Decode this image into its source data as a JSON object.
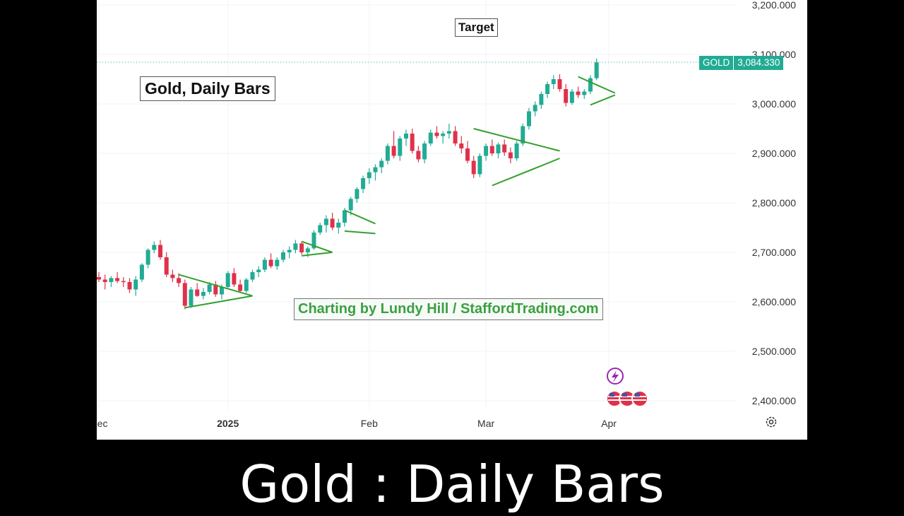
{
  "caption": "Gold : Daily Bars",
  "colors": {
    "up": "#22ab94",
    "down": "#e0314b",
    "pattern": "#32a02c",
    "grid": "#f0f3fa",
    "axis_text": "#333333"
  },
  "price_tag": {
    "symbol": "GOLD",
    "value": "3,084.330"
  },
  "icons": [
    "lightning-icon",
    "us-flag-icon",
    "settings-icon"
  ],
  "chart_data": {
    "type": "candlestick",
    "title": "Gold, Daily Bars",
    "annotations": [
      "Target",
      "Charting by Lundy Hill / StaffordTrading.com"
    ],
    "y_ticks": [
      "3,200.000",
      "3,100.000",
      "3,000.000",
      "2,900.000",
      "2,800.000",
      "2,700.000",
      "2,600.000",
      "2,500.000",
      "2,400.000"
    ],
    "y_tick_values": [
      3200,
      3100,
      3000,
      2900,
      2800,
      2700,
      2600,
      2500,
      2400
    ],
    "x_ticks": [
      {
        "label": "Dec",
        "bar": 0,
        "bold": false
      },
      {
        "label": "2025",
        "bar": 21,
        "bold": true
      },
      {
        "label": "Feb",
        "bar": 44,
        "bold": false
      },
      {
        "label": "Mar",
        "bar": 63,
        "bold": false
      },
      {
        "label": "Apr",
        "bar": 83,
        "bold": false
      }
    ],
    "ylim": [
      2370,
      3210
    ],
    "last_price": 3084.33,
    "ohlc": [
      [
        2650,
        2660,
        2640,
        2645
      ],
      [
        2645,
        2655,
        2625,
        2640
      ],
      [
        2640,
        2652,
        2630,
        2648
      ],
      [
        2648,
        2660,
        2638,
        2642
      ],
      [
        2642,
        2650,
        2630,
        2640
      ],
      [
        2640,
        2648,
        2618,
        2625
      ],
      [
        2625,
        2652,
        2612,
        2645
      ],
      [
        2645,
        2678,
        2640,
        2675
      ],
      [
        2675,
        2708,
        2668,
        2705
      ],
      [
        2705,
        2722,
        2698,
        2715
      ],
      [
        2715,
        2725,
        2685,
        2690
      ],
      [
        2690,
        2700,
        2650,
        2655
      ],
      [
        2655,
        2665,
        2640,
        2648
      ],
      [
        2648,
        2658,
        2630,
        2638
      ],
      [
        2638,
        2645,
        2585,
        2592
      ],
      [
        2592,
        2630,
        2588,
        2625
      ],
      [
        2625,
        2638,
        2610,
        2612
      ],
      [
        2612,
        2628,
        2605,
        2620
      ],
      [
        2620,
        2640,
        2615,
        2635
      ],
      [
        2635,
        2642,
        2610,
        2615
      ],
      [
        2615,
        2635,
        2605,
        2630
      ],
      [
        2630,
        2662,
        2628,
        2658
      ],
      [
        2658,
        2668,
        2630,
        2635
      ],
      [
        2635,
        2645,
        2618,
        2622
      ],
      [
        2622,
        2648,
        2618,
        2645
      ],
      [
        2645,
        2665,
        2640,
        2660
      ],
      [
        2660,
        2672,
        2650,
        2665
      ],
      [
        2665,
        2690,
        2660,
        2685
      ],
      [
        2685,
        2698,
        2668,
        2672
      ],
      [
        2672,
        2690,
        2665,
        2685
      ],
      [
        2685,
        2705,
        2680,
        2700
      ],
      [
        2700,
        2712,
        2688,
        2705
      ],
      [
        2705,
        2725,
        2698,
        2718
      ],
      [
        2718,
        2722,
        2695,
        2700
      ],
      [
        2700,
        2712,
        2690,
        2708
      ],
      [
        2708,
        2745,
        2705,
        2740
      ],
      [
        2740,
        2760,
        2735,
        2755
      ],
      [
        2755,
        2775,
        2740,
        2768
      ],
      [
        2768,
        2780,
        2745,
        2750
      ],
      [
        2750,
        2768,
        2738,
        2760
      ],
      [
        2760,
        2790,
        2752,
        2785
      ],
      [
        2785,
        2812,
        2775,
        2808
      ],
      [
        2808,
        2832,
        2800,
        2828
      ],
      [
        2828,
        2855,
        2820,
        2850
      ],
      [
        2850,
        2870,
        2838,
        2862
      ],
      [
        2862,
        2878,
        2845,
        2872
      ],
      [
        2872,
        2890,
        2860,
        2885
      ],
      [
        2885,
        2920,
        2878,
        2915
      ],
      [
        2915,
        2945,
        2890,
        2895
      ],
      [
        2895,
        2935,
        2885,
        2930
      ],
      [
        2930,
        2948,
        2915,
        2940
      ],
      [
        2940,
        2950,
        2900,
        2905
      ],
      [
        2905,
        2915,
        2882,
        2888
      ],
      [
        2888,
        2925,
        2880,
        2920
      ],
      [
        2920,
        2948,
        2915,
        2942
      ],
      [
        2942,
        2955,
        2930,
        2935
      ],
      [
        2935,
        2945,
        2920,
        2940
      ],
      [
        2940,
        2960,
        2930,
        2945
      ],
      [
        2945,
        2955,
        2915,
        2920
      ],
      [
        2920,
        2935,
        2900,
        2910
      ],
      [
        2910,
        2925,
        2880,
        2885
      ],
      [
        2885,
        2895,
        2850,
        2858
      ],
      [
        2858,
        2900,
        2852,
        2895
      ],
      [
        2895,
        2920,
        2885,
        2915
      ],
      [
        2915,
        2928,
        2895,
        2900
      ],
      [
        2900,
        2922,
        2890,
        2918
      ],
      [
        2918,
        2928,
        2895,
        2902
      ],
      [
        2902,
        2912,
        2880,
        2890
      ],
      [
        2890,
        2925,
        2885,
        2920
      ],
      [
        2920,
        2960,
        2915,
        2955
      ],
      [
        2955,
        2992,
        2948,
        2985
      ],
      [
        2985,
        3005,
        2975,
        2998
      ],
      [
        2998,
        3025,
        2990,
        3020
      ],
      [
        3020,
        3045,
        3012,
        3040
      ],
      [
        3040,
        3058,
        3030,
        3050
      ],
      [
        3050,
        3060,
        3025,
        3030
      ],
      [
        3030,
        3040,
        2995,
        3002
      ],
      [
        3002,
        3030,
        2998,
        3025
      ],
      [
        3025,
        3035,
        3012,
        3018
      ],
      [
        3018,
        3030,
        3010,
        3025
      ],
      [
        3025,
        3058,
        3020,
        3052
      ],
      [
        3052,
        3092,
        3048,
        3084
      ]
    ],
    "patterns": [
      [
        [
          13,
          2655
        ],
        [
          25,
          2612
        ]
      ],
      [
        [
          14,
          2588
        ],
        [
          25,
          2612
        ]
      ],
      [
        [
          33,
          2722
        ],
        [
          38,
          2700
        ]
      ],
      [
        [
          33,
          2693
        ],
        [
          38,
          2700
        ]
      ],
      [
        [
          40,
          2785
        ],
        [
          45,
          2758
        ]
      ],
      [
        [
          40,
          2743
        ],
        [
          45,
          2738
        ]
      ],
      [
        [
          61,
          2950
        ],
        [
          75,
          2905
        ]
      ],
      [
        [
          64,
          2835
        ],
        [
          75,
          2890
        ]
      ],
      [
        [
          78,
          3055
        ],
        [
          84,
          3022
        ]
      ],
      [
        [
          80,
          2998
        ],
        [
          84,
          3018
        ]
      ]
    ]
  }
}
